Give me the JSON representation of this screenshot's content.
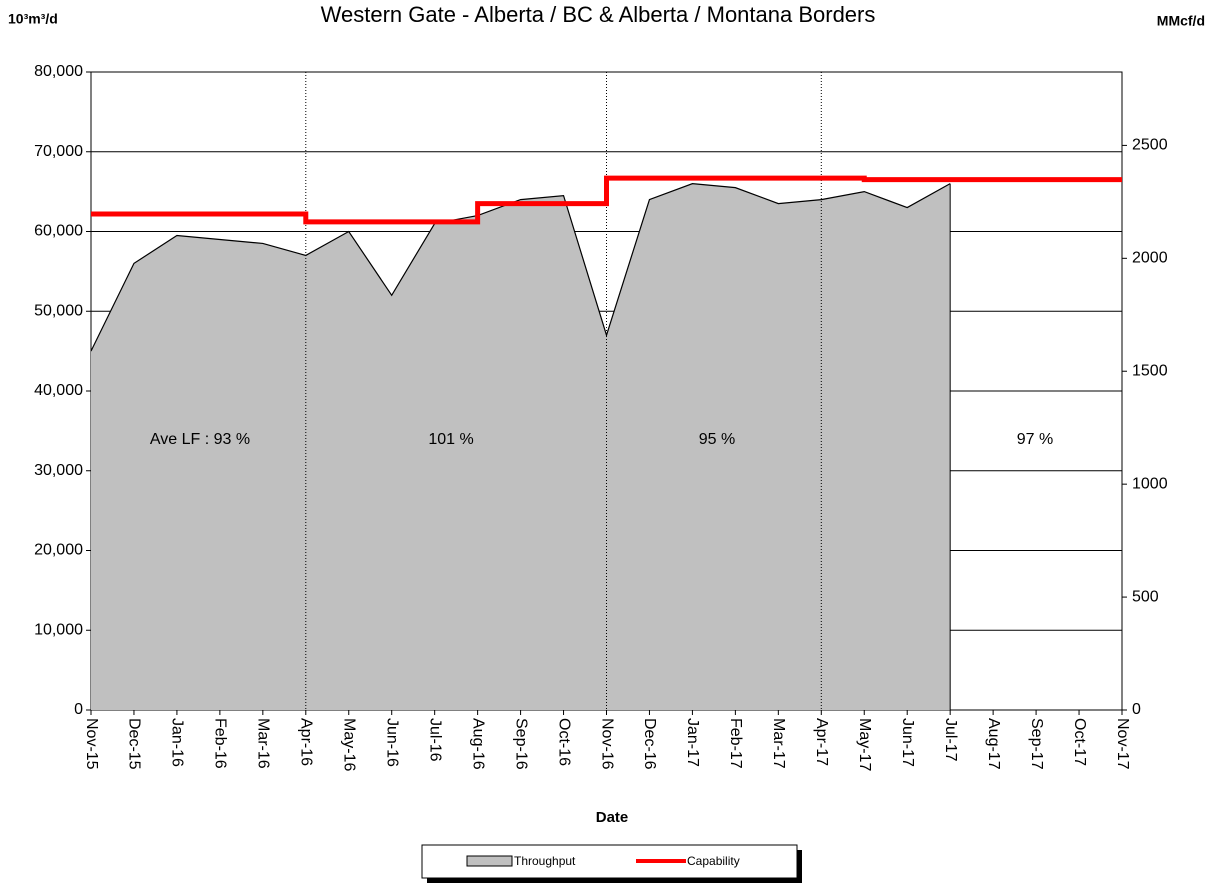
{
  "chart_data": {
    "type": "area",
    "title": "Western Gate - Alberta / BC & Alberta / Montana Borders",
    "y_label": "10³m³/d",
    "y2_label": "MMcf/d",
    "x_label": "Date",
    "categories": [
      "Nov-15",
      "Dec-15",
      "Jan-16",
      "Feb-16",
      "Mar-16",
      "Apr-16",
      "May-16",
      "Jun-16",
      "Jul-16",
      "Aug-16",
      "Sep-16",
      "Oct-16",
      "Nov-16",
      "Dec-16",
      "Jan-17",
      "Feb-17",
      "Mar-17",
      "Apr-17",
      "May-17",
      "Jun-17",
      "Jul-17",
      "Aug-17",
      "Sep-17",
      "Oct-17",
      "Nov-17"
    ],
    "series": [
      {
        "name": "Throughput",
        "color": "#c0c0c0",
        "line_color": "#000000",
        "values": [
          45000,
          56000,
          59500,
          59000,
          58500,
          57000,
          60000,
          52000,
          61000,
          62000,
          64000,
          64500,
          47000,
          64000,
          66000,
          65500,
          63500,
          64000,
          65000,
          63000,
          66000,
          null,
          null,
          null,
          null
        ]
      },
      {
        "name": "Capability",
        "color": "#ff0000",
        "step": true,
        "values": [
          62200,
          62200,
          62200,
          62200,
          62200,
          61200,
          61200,
          61200,
          61200,
          63500,
          63500,
          63500,
          66700,
          66700,
          66700,
          66700,
          66700,
          66700,
          66500,
          66500,
          66500,
          66500,
          66500,
          66500,
          66500
        ]
      }
    ],
    "annotations": [
      "Ave LF : 93 %",
      "101 %",
      "95 %",
      "97 %"
    ],
    "ylim": [
      0,
      80000
    ],
    "yticks": [
      0,
      {
        "value": 10000,
        "label": "10,000"
      },
      {
        "value": 20000,
        "label": "20,000"
      },
      {
        "value": 30000,
        "label": "30,000"
      },
      {
        "value": 40000,
        "label": "40,000"
      },
      {
        "value": 50000,
        "label": "50,000"
      },
      {
        "value": 60000,
        "label": "60,000"
      },
      {
        "value": 70000,
        "label": "70,000"
      },
      {
        "value": 80000,
        "label": "80,000"
      }
    ],
    "y2lim": [
      0,
      2825
    ],
    "y2ticks": [
      0,
      500,
      1000,
      1500,
      2000,
      2500
    ],
    "grid": true,
    "legend": "bottom"
  }
}
